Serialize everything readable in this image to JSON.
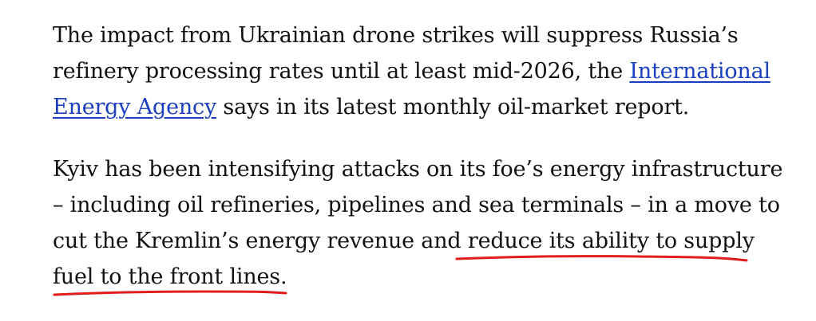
{
  "article": {
    "paragraph1": {
      "text_before": "The impact from Ukrainian drone strikes will suppress Russia’s refinery processing rates until at least mid-2026, the ",
      "link_text": "International Energy Agency",
      "text_after": " says in its latest monthly oil-market report."
    },
    "paragraph2": {
      "text_before": "Kyiv has been intensifying attacks on its foe’s energy infrastructure – including oil refineries, pipelines and sea terminals – in a move to cut the Kremlin’s energy revenue and ",
      "highlighted_text": "reduce its ability to supply fuel to the front lines."
    }
  },
  "annotation": {
    "underline_color": "#e01c1c"
  }
}
